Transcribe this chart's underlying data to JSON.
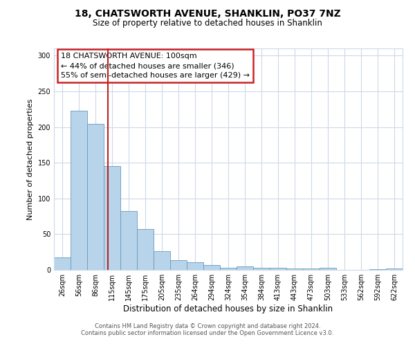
{
  "title": "18, CHATSWORTH AVENUE, SHANKLIN, PO37 7NZ",
  "subtitle": "Size of property relative to detached houses in Shanklin",
  "xlabel": "Distribution of detached houses by size in Shanklin",
  "ylabel": "Number of detached properties",
  "bar_labels": [
    "26sqm",
    "56sqm",
    "86sqm",
    "115sqm",
    "145sqm",
    "175sqm",
    "205sqm",
    "235sqm",
    "264sqm",
    "294sqm",
    "324sqm",
    "354sqm",
    "384sqm",
    "413sqm",
    "443sqm",
    "473sqm",
    "503sqm",
    "533sqm",
    "562sqm",
    "592sqm",
    "622sqm"
  ],
  "bar_heights": [
    17,
    223,
    204,
    145,
    82,
    57,
    26,
    14,
    11,
    7,
    3,
    5,
    3,
    3,
    2,
    2,
    3,
    0,
    0,
    1,
    2
  ],
  "bar_color": "#b8d4ea",
  "bar_edge_color": "#6699bb",
  "vline_x": 2.75,
  "vline_color": "#bb2222",
  "ylim": [
    0,
    310
  ],
  "yticks": [
    0,
    50,
    100,
    150,
    200,
    250,
    300
  ],
  "annotation_title": "18 CHATSWORTH AVENUE: 100sqm",
  "annotation_line1": "← 44% of detached houses are smaller (346)",
  "annotation_line2": "55% of semi-detached houses are larger (429) →",
  "annotation_box_color": "#cc2222",
  "footer1": "Contains HM Land Registry data © Crown copyright and database right 2024.",
  "footer2": "Contains public sector information licensed under the Open Government Licence v3.0.",
  "background_color": "#ffffff",
  "grid_color": "#ccd9e8"
}
